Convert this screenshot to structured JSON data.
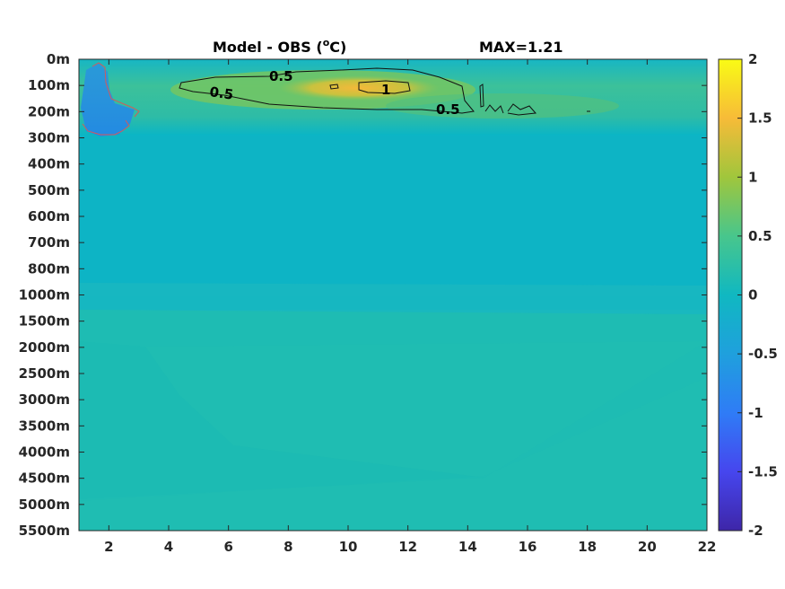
{
  "chart_data": {
    "type": "heatmap",
    "title": "Model - OBS (",
    "title_sup": "o",
    "title_tail": "C)",
    "max_label": "MAX=1.21",
    "x_ticks": [
      "2",
      "4",
      "6",
      "8",
      "10",
      "12",
      "14",
      "16",
      "18",
      "20",
      "22"
    ],
    "x_tick_values": [
      2,
      4,
      6,
      8,
      10,
      12,
      14,
      16,
      18,
      20,
      22
    ],
    "xlim": [
      1,
      22
    ],
    "y_ticks": [
      "0m",
      "100m",
      "200m",
      "300m",
      "400m",
      "500m",
      "600m",
      "700m",
      "800m",
      "1000m",
      "1500m",
      "2000m",
      "2500m",
      "3000m",
      "3500m",
      "4000m",
      "4500m",
      "5000m",
      "5500m"
    ],
    "colorbar": {
      "ticks": [
        "2",
        "1.5",
        "1",
        "0.5",
        "0",
        "-0.5",
        "-1",
        "-1.5",
        "-2"
      ],
      "tick_values": [
        2,
        1.5,
        1,
        0.5,
        0,
        -0.5,
        -1,
        -1.5,
        -2
      ],
      "clim": [
        -2,
        2
      ],
      "colormap": "parula"
    },
    "contour_labels": [
      "0.5",
      "0.5",
      "1",
      "0.5"
    ],
    "colors": {
      "background_deep": "#1ebcb3",
      "background_mid": "#06b3c8",
      "surface": "#1ab6c0",
      "warm_band": "#7cc65f",
      "hot_core": "#f6b835",
      "cold_patch": "#1f8ee0"
    }
  }
}
